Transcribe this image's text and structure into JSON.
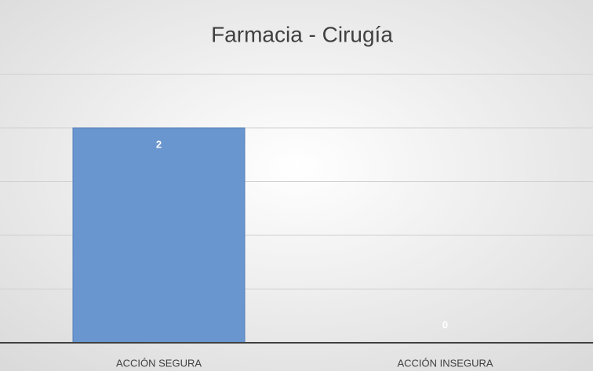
{
  "chart_data": {
    "type": "bar",
    "title": "Farmacia - Cirugía",
    "categories": [
      "ACCIÓN SEGURA",
      "ACCIÓN INSEGURA"
    ],
    "values": [
      2,
      0
    ],
    "color": "#6a96cf",
    "ylim": [
      0,
      3
    ],
    "yticks": [
      0,
      0.5,
      1,
      1.5,
      2,
      2.5
    ],
    "grid": true,
    "show_ytick_labels": false
  }
}
